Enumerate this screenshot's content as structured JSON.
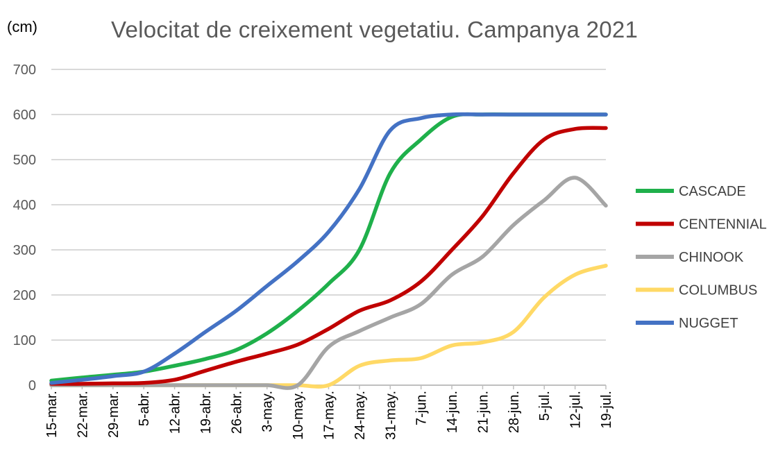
{
  "chart_data": {
    "type": "line",
    "title": "Velocitat de creixement vegetatiu. Campanya 2021",
    "y_unit": "(cm)",
    "xlabel": "",
    "ylabel": "",
    "ylim": [
      0,
      700
    ],
    "yticks": [
      0,
      100,
      200,
      300,
      400,
      500,
      600,
      700
    ],
    "grid": true,
    "legend_position": "right",
    "categories": [
      "15-mar.",
      "22-mar.",
      "29-mar.",
      "5-abr.",
      "12-abr.",
      "19-abr.",
      "26-abr.",
      "3-may.",
      "10-may.",
      "17-may.",
      "24-may.",
      "31-may.",
      "7-jun.",
      "14-jun.",
      "21-jun.",
      "28-jun.",
      "5-jul.",
      "12-jul.",
      "19-jul."
    ],
    "series": [
      {
        "name": "CASCADE",
        "color": "#1fb04b",
        "values": [
          10,
          17,
          23,
          30,
          43,
          58,
          78,
          115,
          165,
          225,
          300,
          470,
          545,
          595,
          600,
          600,
          600,
          600,
          600
        ]
      },
      {
        "name": "CENTENNIAL",
        "color": "#c00000",
        "values": [
          3,
          3,
          4,
          5,
          12,
          32,
          52,
          70,
          90,
          125,
          165,
          188,
          230,
          300,
          375,
          470,
          545,
          568,
          570
        ]
      },
      {
        "name": "CHINOOK",
        "color": "#a5a5a5",
        "values": [
          0,
          0,
          0,
          0,
          0,
          0,
          0,
          0,
          0,
          85,
          120,
          150,
          180,
          245,
          285,
          355,
          410,
          460,
          398
        ]
      },
      {
        "name": "COLUMBUS",
        "color": "#ffd966",
        "values": [
          0,
          0,
          0,
          0,
          0,
          0,
          0,
          0,
          0,
          0,
          43,
          55,
          60,
          88,
          95,
          118,
          195,
          245,
          265
        ]
      },
      {
        "name": "NUGGET",
        "color": "#4472c4",
        "values": [
          5,
          12,
          20,
          30,
          70,
          118,
          165,
          220,
          275,
          340,
          435,
          565,
          592,
          600,
          600,
          600,
          600,
          600,
          600
        ]
      }
    ]
  }
}
